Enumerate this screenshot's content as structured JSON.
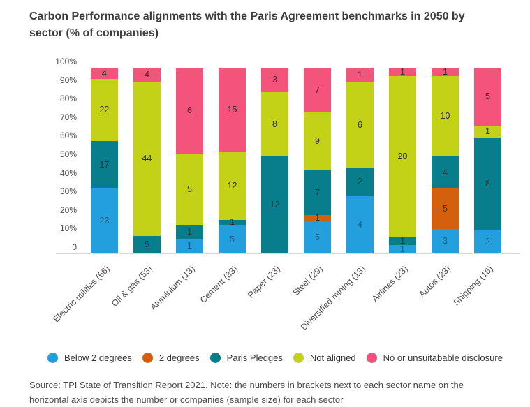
{
  "title": {
    "line1": "Carbon Performance alignments with the Paris Agreement benchmarks in 2050 by",
    "line2": "sector (% of companies)"
  },
  "chart_data": {
    "type": "bar",
    "variant": "stacked-percent-column",
    "title": "Carbon Performance alignments with the Paris Agreement benchmarks in 2050 by sector (% of companies)",
    "categories": [
      "Electric utilities (66)",
      "Oil & gas (53)",
      "Aluminium (13)",
      "Cement (33)",
      "Paper (23)",
      "Steel (29)",
      "Diversified mining (13)",
      "Airlines (23)",
      "Autos (23)",
      "Shipping (16)"
    ],
    "sample_sizes": [
      66,
      53,
      13,
      33,
      23,
      29,
      13,
      23,
      23,
      16
    ],
    "series": [
      {
        "name": "Below 2 degrees",
        "color": "#229fdc",
        "values": [
          23,
          0,
          1,
          5,
          0,
          5,
          4,
          1,
          3,
          2
        ]
      },
      {
        "name": "2 degrees",
        "color": "#d4600d",
        "values": [
          0,
          0,
          0,
          0,
          0,
          1,
          0,
          0,
          5,
          0
        ]
      },
      {
        "name": "Paris Pledges",
        "color": "#087e8c",
        "values": [
          17,
          5,
          1,
          1,
          12,
          7,
          2,
          1,
          4,
          8
        ]
      },
      {
        "name": "Not aligned",
        "color": "#c3d117",
        "values": [
          22,
          44,
          5,
          12,
          8,
          9,
          6,
          20,
          10,
          1
        ]
      },
      {
        "name": "No or unsuitabable disclosure",
        "color": "#f4537c",
        "values": [
          4,
          4,
          6,
          15,
          3,
          7,
          1,
          1,
          1,
          5
        ]
      }
    ],
    "yticks": [
      "100%",
      "90%",
      "80%",
      "70%",
      "60%",
      "50%",
      "40%",
      "30%",
      "20%",
      "10%",
      "0"
    ],
    "ylim": [
      0,
      100
    ],
    "xlabel": "",
    "ylabel": "",
    "grid": false,
    "legend_position": "bottom",
    "bar_labels": "absolute-counts"
  },
  "footer": {
    "line1": "Source: TPI State of Transition Report 2021. Note: the numbers in brackets next to each sector name on the",
    "line2": "horizontal axis depicts the number or companies (sample size) for each sector"
  }
}
